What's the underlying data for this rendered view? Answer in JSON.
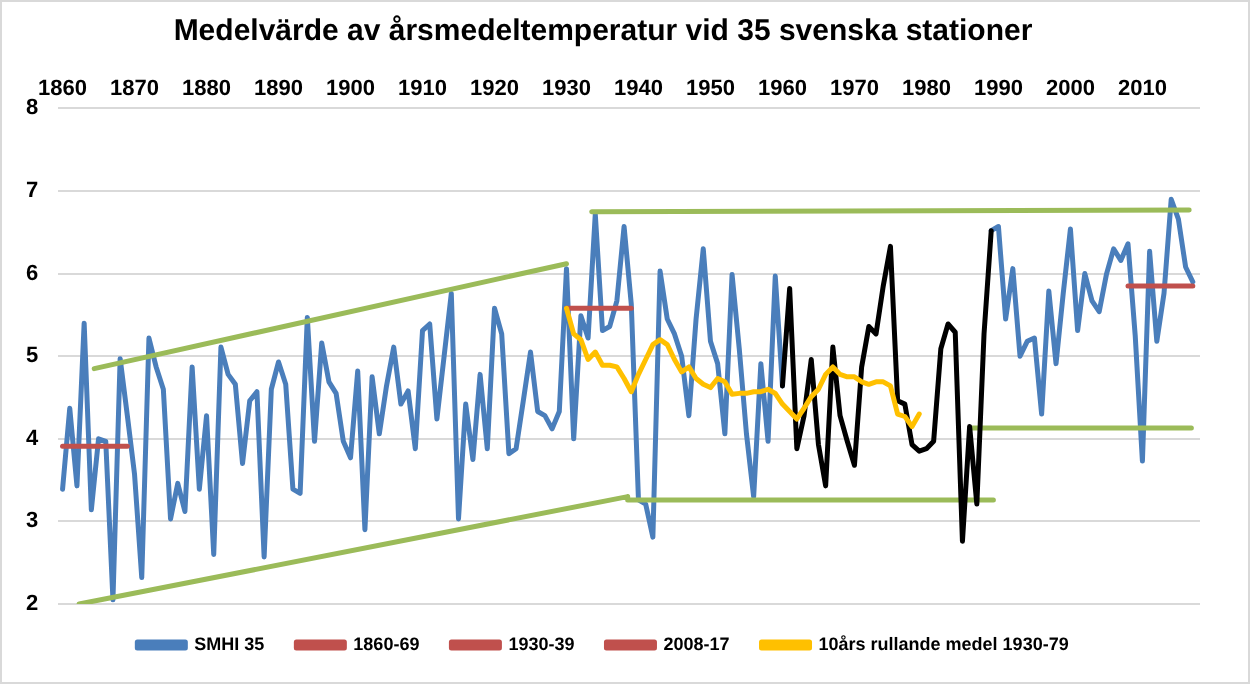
{
  "chart_data": {
    "type": "line",
    "title": "Medelvärde av årsmedeltemperatur vid 35 svenska stationer",
    "x": [
      1860,
      1861,
      1862,
      1863,
      1864,
      1865,
      1866,
      1867,
      1868,
      1869,
      1870,
      1871,
      1872,
      1873,
      1874,
      1875,
      1876,
      1877,
      1878,
      1879,
      1880,
      1881,
      1882,
      1883,
      1884,
      1885,
      1886,
      1887,
      1888,
      1889,
      1890,
      1891,
      1892,
      1893,
      1894,
      1895,
      1896,
      1897,
      1898,
      1899,
      1900,
      1901,
      1902,
      1903,
      1904,
      1905,
      1906,
      1907,
      1908,
      1909,
      1910,
      1911,
      1912,
      1913,
      1914,
      1915,
      1916,
      1917,
      1918,
      1919,
      1920,
      1921,
      1922,
      1923,
      1924,
      1925,
      1926,
      1927,
      1928,
      1929,
      1930,
      1931,
      1932,
      1933,
      1934,
      1935,
      1936,
      1937,
      1938,
      1939,
      1940,
      1941,
      1942,
      1943,
      1944,
      1945,
      1946,
      1947,
      1948,
      1949,
      1950,
      1951,
      1952,
      1953,
      1954,
      1955,
      1956,
      1957,
      1958,
      1959,
      1960,
      1961,
      1962,
      1963,
      1964,
      1965,
      1966,
      1967,
      1968,
      1969,
      1970,
      1971,
      1972,
      1973,
      1974,
      1975,
      1976,
      1977,
      1978,
      1979,
      1980,
      1981,
      1982,
      1983,
      1984,
      1985,
      1986,
      1987,
      1988,
      1989,
      1990,
      1991,
      1992,
      1993,
      1994,
      1995,
      1996,
      1997,
      1998,
      1999,
      2000,
      2001,
      2002,
      2003,
      2004,
      2005,
      2006,
      2007,
      2008,
      2009,
      2010,
      2011,
      2012,
      2013,
      2014,
      2015,
      2016,
      2017
    ],
    "series": [
      {
        "type": "line",
        "name": "SMHI 35",
        "color": "#4a7ebb",
        "values": [
          3.39,
          4.37,
          3.43,
          5.4,
          3.14,
          4.0,
          3.97,
          2.05,
          4.97,
          4.28,
          3.57,
          2.32,
          5.22,
          4.87,
          4.6,
          3.03,
          3.46,
          3.12,
          4.87,
          3.39,
          4.28,
          2.6,
          5.11,
          4.78,
          4.66,
          3.7,
          4.46,
          4.57,
          2.57,
          4.6,
          4.93,
          4.66,
          3.39,
          3.34,
          5.47,
          3.97,
          5.16,
          4.69,
          4.55,
          3.97,
          3.77,
          4.82,
          2.9,
          4.75,
          4.06,
          4.64,
          5.11,
          4.42,
          4.58,
          3.88,
          5.31,
          5.39,
          4.24,
          5.0,
          5.76,
          3.03,
          4.42,
          3.75,
          4.78,
          3.88,
          5.58,
          5.27,
          3.82,
          3.88,
          4.46,
          5.05,
          4.33,
          4.28,
          4.12,
          4.33,
          6.06,
          4.0,
          5.49,
          5.22,
          6.72,
          5.31,
          5.36,
          5.67,
          6.57,
          5.63,
          3.26,
          3.21,
          2.81,
          6.03,
          5.45,
          5.27,
          5.0,
          4.28,
          5.45,
          6.3,
          5.18,
          4.91,
          4.06,
          5.99,
          5.09,
          4.06,
          3.3,
          4.91,
          3.97,
          5.97,
          4.64,
          null,
          null,
          null,
          null,
          null,
          null,
          null,
          null,
          null,
          null,
          null,
          null,
          null,
          null,
          null,
          null,
          null,
          null,
          null,
          null,
          null,
          null,
          null,
          null,
          null,
          null,
          null,
          null,
          6.52,
          6.57,
          5.45,
          6.06,
          5.0,
          5.18,
          5.22,
          4.3,
          5.79,
          4.91,
          5.76,
          6.54,
          5.31,
          6.0,
          5.67,
          5.54,
          5.99,
          6.3,
          6.16,
          6.36,
          5.25,
          3.73,
          6.27,
          5.18,
          5.76,
          6.9,
          6.66,
          6.08,
          5.9
        ]
      },
      {
        "type": "line",
        "name": "1860-69",
        "color": "#c0504d",
        "x": [
          1860,
          1869
        ],
        "values": [
          3.91,
          3.91
        ]
      },
      {
        "type": "line",
        "name": "1930-39",
        "color": "#c0504d",
        "x": [
          1930,
          1939
        ],
        "values": [
          5.58,
          5.58
        ]
      },
      {
        "type": "line",
        "name": "2008-17",
        "color": "#c0504d",
        "x": [
          2008,
          2017
        ],
        "values": [
          5.85,
          5.85
        ]
      },
      {
        "type": "line",
        "color": "#9bbb59",
        "x": [
          1864.4,
          1930
        ],
        "values": [
          4.85,
          6.12
        ]
      },
      {
        "type": "line",
        "color": "#9bbb59",
        "x": [
          1862.3,
          1938.5,
          1938.5,
          1989.3
        ],
        "values": [
          2.0,
          3.3,
          3.26,
          3.26
        ]
      },
      {
        "type": "line",
        "color": "#9bbb59",
        "x": [
          1933.5,
          2016.5
        ],
        "values": [
          6.75,
          6.77
        ]
      },
      {
        "type": "line",
        "color": "#9bbb59",
        "x": [
          1986,
          2016.8
        ],
        "values": [
          4.13,
          4.13
        ]
      },
      {
        "type": "line",
        "color": "#000000",
        "x": [
          1960,
          1961,
          1962,
          1963,
          1964,
          1965,
          1966,
          1967,
          1968,
          1969,
          1970,
          1971,
          1972,
          1973,
          1974,
          1975,
          1976,
          1977,
          1978,
          1979,
          1980,
          1981,
          1982,
          1983,
          1984,
          1985,
          1986,
          1987,
          1988,
          1989
        ],
        "values": [
          4.64,
          5.82,
          3.88,
          4.28,
          4.96,
          3.93,
          3.43,
          5.11,
          4.28,
          3.97,
          3.68,
          4.87,
          5.36,
          5.27,
          5.85,
          6.33,
          4.46,
          4.42,
          3.93,
          3.85,
          3.88,
          3.97,
          5.09,
          5.39,
          5.29,
          2.76,
          4.15,
          3.21,
          5.27,
          6.52
        ]
      },
      {
        "type": "line",
        "name": "10års rullande medel 1930-79",
        "color": "#ffc000",
        "x": [
          1930,
          1931,
          1932,
          1933,
          1934,
          1935,
          1936,
          1937,
          1938,
          1939,
          1940,
          1941,
          1942,
          1943,
          1944,
          1945,
          1946,
          1947,
          1948,
          1949,
          1950,
          1951,
          1952,
          1953,
          1954,
          1955,
          1956,
          1957,
          1958,
          1959,
          1960,
          1961,
          1962,
          1963,
          1964,
          1965,
          1966,
          1967,
          1968,
          1969,
          1970,
          1971,
          1972,
          1973,
          1974,
          1975,
          1976,
          1977,
          1978,
          1979
        ],
        "values": [
          5.58,
          5.27,
          5.2,
          4.96,
          5.05,
          4.89,
          4.89,
          4.87,
          4.73,
          4.57,
          4.78,
          4.96,
          5.14,
          5.2,
          5.14,
          4.96,
          4.81,
          4.87,
          4.73,
          4.66,
          4.62,
          4.73,
          4.69,
          4.54,
          4.55,
          4.55,
          4.57,
          4.57,
          4.6,
          4.55,
          4.42,
          4.33,
          4.24,
          4.37,
          4.51,
          4.6,
          4.78,
          4.87,
          4.78,
          4.75,
          4.75,
          4.69,
          4.66,
          4.69,
          4.69,
          4.64,
          4.3,
          4.27,
          4.15,
          4.3
        ]
      }
    ],
    "xlim": [
      1859.4,
      2018
    ],
    "xticks": [
      1860,
      1870,
      1880,
      1890,
      1900,
      1910,
      1920,
      1930,
      1940,
      1950,
      1960,
      1970,
      1980,
      1990,
      2000,
      2010
    ],
    "ylim": [
      2,
      8
    ],
    "yticks": [
      2,
      3,
      4,
      5,
      6,
      7,
      8
    ],
    "grid": "y",
    "legend": "bottom",
    "marker": "none",
    "line_style": "solid"
  }
}
